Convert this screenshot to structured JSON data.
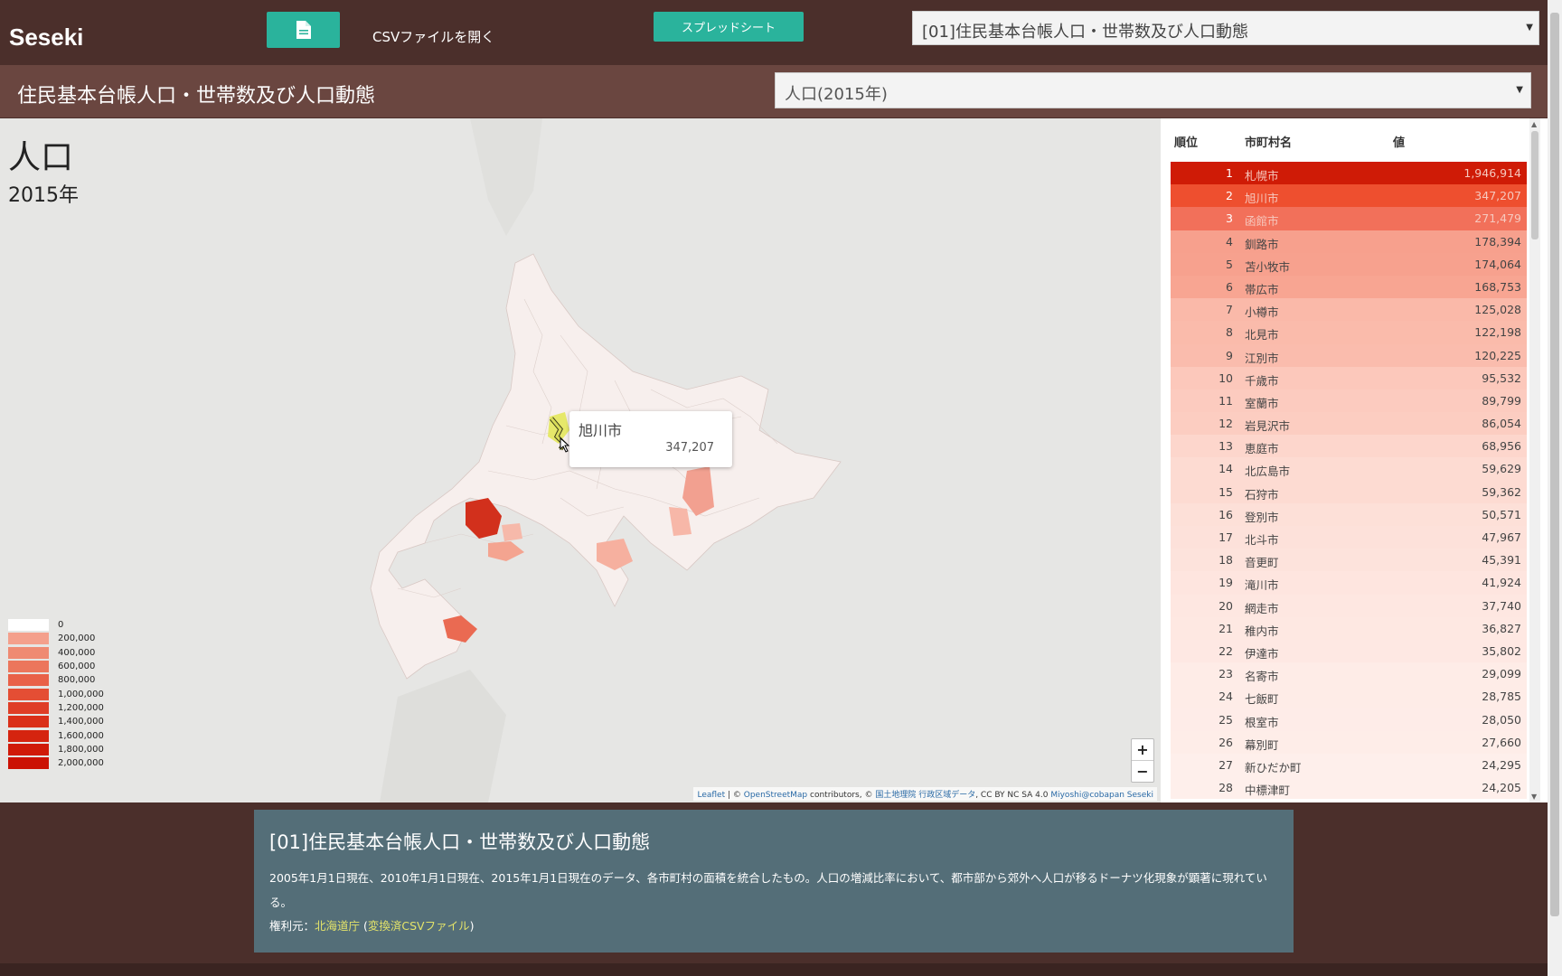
{
  "app": {
    "brand": "Seseki"
  },
  "toolbar": {
    "open_csv_label": "CSVファイルを開く",
    "spreadsheet_label": "スプレッドシート",
    "dataset_selected": "[01]住民基本台帳人口・世帯数及び人口動態"
  },
  "subheader": {
    "title": "住民基本台帳人口・世帯数及び人口動態",
    "item_selected": "人口(2015年)"
  },
  "map": {
    "title": "人口",
    "year": "2015年",
    "legend": [
      {
        "label": "0",
        "color": "#ffffff"
      },
      {
        "label": "200,000",
        "color": "#f4a08c"
      },
      {
        "label": "400,000",
        "color": "#ef8a72"
      },
      {
        "label": "600,000",
        "color": "#ec765c"
      },
      {
        "label": "800,000",
        "color": "#e96148"
      },
      {
        "label": "1,000,000",
        "color": "#e44e34"
      },
      {
        "label": "1,200,000",
        "color": "#df3e26"
      },
      {
        "label": "1,400,000",
        "color": "#da3019"
      },
      {
        "label": "1,600,000",
        "color": "#d5240f"
      },
      {
        "label": "1,800,000",
        "color": "#d01a08"
      },
      {
        "label": "2,000,000",
        "color": "#cb1204"
      }
    ],
    "tooltip": {
      "name": "旭川市",
      "value": "347,207"
    },
    "zoom_in": "+",
    "zoom_out": "−",
    "attribution": {
      "leaflet": "Leaflet",
      "sep1": " | © ",
      "osm": "OpenStreetMap",
      "contrib": " contributors, © ",
      "gsi": "国土地理院 行政区域データ",
      "license": ", CC BY NC SA 4.0 ",
      "miyoshi": "Miyoshi@cobapan Seseki"
    }
  },
  "ranking": {
    "headers": {
      "rank": "順位",
      "name": "市町村名",
      "value": "値"
    },
    "rows": [
      {
        "rank": "1",
        "name": "札幌市",
        "value": "1,946,914",
        "color": "#cf1b06"
      },
      {
        "rank": "2",
        "name": "旭川市",
        "value": "347,207",
        "color": "#ee4f2f"
      },
      {
        "rank": "3",
        "name": "函館市",
        "value": "271,479",
        "color": "#f2705a"
      },
      {
        "rank": "4",
        "name": "釧路市",
        "value": "178,394",
        "color": "#f7a08d"
      },
      {
        "rank": "5",
        "name": "苫小牧市",
        "value": "174,064",
        "color": "#f7a18e"
      },
      {
        "rank": "6",
        "name": "帯広市",
        "value": "168,753",
        "color": "#f8a592"
      },
      {
        "rank": "7",
        "name": "小樽市",
        "value": "125,028",
        "color": "#fab9a9"
      },
      {
        "rank": "8",
        "name": "北見市",
        "value": "122,198",
        "color": "#fabbab"
      },
      {
        "rank": "9",
        "name": "江別市",
        "value": "120,225",
        "color": "#fabcad"
      },
      {
        "rank": "10",
        "name": "千歳市",
        "value": "95,532",
        "color": "#fcc8bb"
      },
      {
        "rank": "11",
        "name": "室蘭市",
        "value": "89,799",
        "color": "#fccbbf"
      },
      {
        "rank": "12",
        "name": "岩見沢市",
        "value": "86,054",
        "color": "#fccdc1"
      },
      {
        "rank": "13",
        "name": "恵庭市",
        "value": "68,956",
        "color": "#fdd6cc"
      },
      {
        "rank": "14",
        "name": "北広島市",
        "value": "59,629",
        "color": "#fddbd2"
      },
      {
        "rank": "15",
        "name": "石狩市",
        "value": "59,362",
        "color": "#fddbd2"
      },
      {
        "rank": "16",
        "name": "登別市",
        "value": "50,571",
        "color": "#fde0d8"
      },
      {
        "rank": "17",
        "name": "北斗市",
        "value": "47,967",
        "color": "#fde1da"
      },
      {
        "rank": "18",
        "name": "音更町",
        "value": "45,391",
        "color": "#fde3dc"
      },
      {
        "rank": "19",
        "name": "滝川市",
        "value": "41,924",
        "color": "#fee5df"
      },
      {
        "rank": "20",
        "name": "網走市",
        "value": "37,740",
        "color": "#fee7e1"
      },
      {
        "rank": "21",
        "name": "稚内市",
        "value": "36,827",
        "color": "#fee8e2"
      },
      {
        "rank": "22",
        "name": "伊達市",
        "value": "35,802",
        "color": "#fee8e3"
      },
      {
        "rank": "23",
        "name": "名寄市",
        "value": "29,099",
        "color": "#feece7"
      },
      {
        "rank": "24",
        "name": "七飯町",
        "value": "28,785",
        "color": "#feece7"
      },
      {
        "rank": "25",
        "name": "根室市",
        "value": "28,050",
        "color": "#feece8"
      },
      {
        "rank": "26",
        "name": "幕別町",
        "value": "27,660",
        "color": "#feede8"
      },
      {
        "rank": "27",
        "name": "新ひだか町",
        "value": "24,295",
        "color": "#feefeb"
      },
      {
        "rank": "28",
        "name": "中標津町",
        "value": "24,205",
        "color": "#feefeb"
      }
    ]
  },
  "description": {
    "title": "[01]住民基本台帳人口・世帯数及び人口動態",
    "body": "2005年1月1日現在、2010年1月1日現在、2015年1月1日現在のデータ、各市町村の面積を統合したもの。人口の増減比率において、都市部から郊外へ人口が移るドーナツ化現象が顕著に現れている。",
    "source_prefix": "権利元：",
    "source_link": "北海道庁",
    "source_paren_open": " (",
    "source_csv_link": "変換済CSVファイル",
    "source_paren_close": ")"
  }
}
